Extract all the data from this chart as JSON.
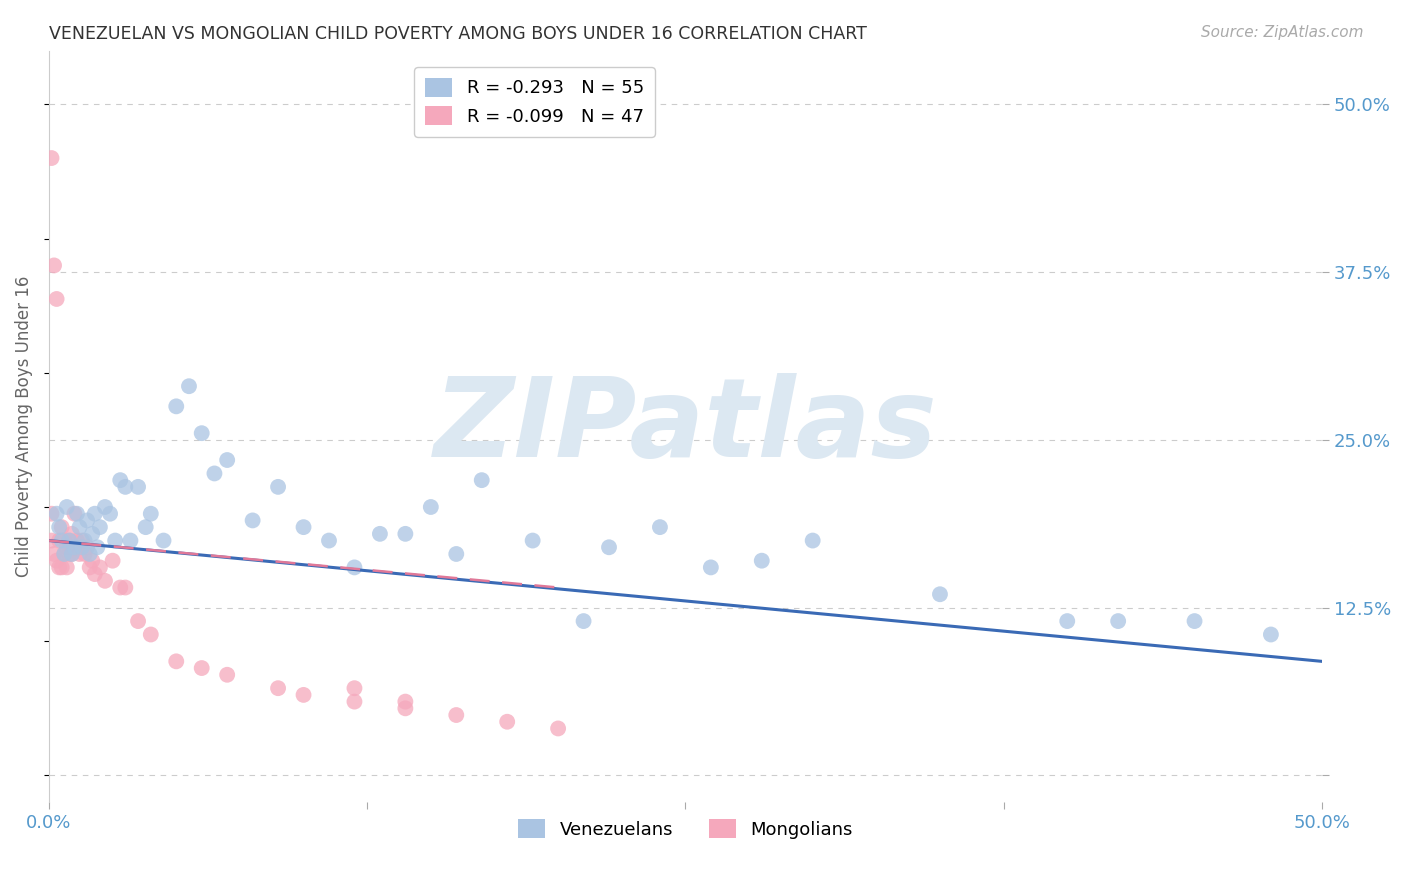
{
  "title": "VENEZUELAN VS MONGOLIAN CHILD POVERTY AMONG BOYS UNDER 16 CORRELATION CHART",
  "source": "Source: ZipAtlas.com",
  "ylabel": "Child Poverty Among Boys Under 16",
  "xlim": [
    0.0,
    0.5
  ],
  "ylim": [
    -0.02,
    0.54
  ],
  "venezuelan_R": -0.293,
  "venezuelan_N": 55,
  "mongolian_R": -0.099,
  "mongolian_N": 47,
  "venezuelan_color": "#aac4e2",
  "mongolian_color": "#f5a8bc",
  "venezuelan_line_color": "#3a6ab5",
  "mongolian_line_color": "#e07898",
  "background_color": "#ffffff",
  "grid_color": "#cccccc",
  "watermark": "ZIPatlas",
  "watermark_color": "#dce8f2",
  "ven_x": [
    0.003,
    0.004,
    0.005,
    0.006,
    0.007,
    0.008,
    0.009,
    0.01,
    0.011,
    0.012,
    0.013,
    0.014,
    0.015,
    0.016,
    0.017,
    0.018,
    0.019,
    0.02,
    0.022,
    0.024,
    0.026,
    0.028,
    0.03,
    0.032,
    0.035,
    0.038,
    0.04,
    0.045,
    0.05,
    0.055,
    0.06,
    0.065,
    0.07,
    0.08,
    0.09,
    0.1,
    0.11,
    0.12,
    0.13,
    0.14,
    0.15,
    0.16,
    0.17,
    0.19,
    0.21,
    0.22,
    0.24,
    0.26,
    0.28,
    0.3,
    0.35,
    0.4,
    0.42,
    0.45,
    0.48
  ],
  "ven_y": [
    0.195,
    0.185,
    0.175,
    0.165,
    0.2,
    0.175,
    0.165,
    0.17,
    0.195,
    0.185,
    0.17,
    0.175,
    0.19,
    0.165,
    0.18,
    0.195,
    0.17,
    0.185,
    0.2,
    0.195,
    0.175,
    0.22,
    0.215,
    0.175,
    0.215,
    0.185,
    0.195,
    0.175,
    0.275,
    0.29,
    0.255,
    0.225,
    0.235,
    0.19,
    0.215,
    0.185,
    0.175,
    0.155,
    0.18,
    0.18,
    0.2,
    0.165,
    0.22,
    0.175,
    0.115,
    0.17,
    0.185,
    0.155,
    0.16,
    0.175,
    0.135,
    0.115,
    0.115,
    0.115,
    0.105
  ],
  "mon_x": [
    0.001,
    0.001,
    0.001,
    0.002,
    0.002,
    0.003,
    0.003,
    0.004,
    0.004,
    0.005,
    0.005,
    0.006,
    0.006,
    0.007,
    0.007,
    0.008,
    0.008,
    0.009,
    0.009,
    0.01,
    0.011,
    0.012,
    0.013,
    0.014,
    0.015,
    0.016,
    0.017,
    0.018,
    0.02,
    0.022,
    0.025,
    0.028,
    0.03,
    0.035,
    0.04,
    0.05,
    0.06,
    0.07,
    0.09,
    0.1,
    0.12,
    0.14,
    0.16,
    0.18,
    0.2,
    0.12,
    0.14
  ],
  "mon_y": [
    0.46,
    0.195,
    0.175,
    0.38,
    0.165,
    0.355,
    0.16,
    0.175,
    0.155,
    0.185,
    0.155,
    0.175,
    0.165,
    0.17,
    0.155,
    0.175,
    0.165,
    0.18,
    0.165,
    0.195,
    0.175,
    0.165,
    0.175,
    0.165,
    0.17,
    0.155,
    0.16,
    0.15,
    0.155,
    0.145,
    0.16,
    0.14,
    0.14,
    0.115,
    0.105,
    0.085,
    0.08,
    0.075,
    0.065,
    0.06,
    0.055,
    0.05,
    0.045,
    0.04,
    0.035,
    0.065,
    0.055
  ],
  "ven_line_x": [
    0.0,
    0.5
  ],
  "ven_line_y": [
    0.175,
    0.085
  ],
  "mon_line_x": [
    0.0,
    0.2
  ],
  "mon_line_y": [
    0.175,
    0.14
  ]
}
